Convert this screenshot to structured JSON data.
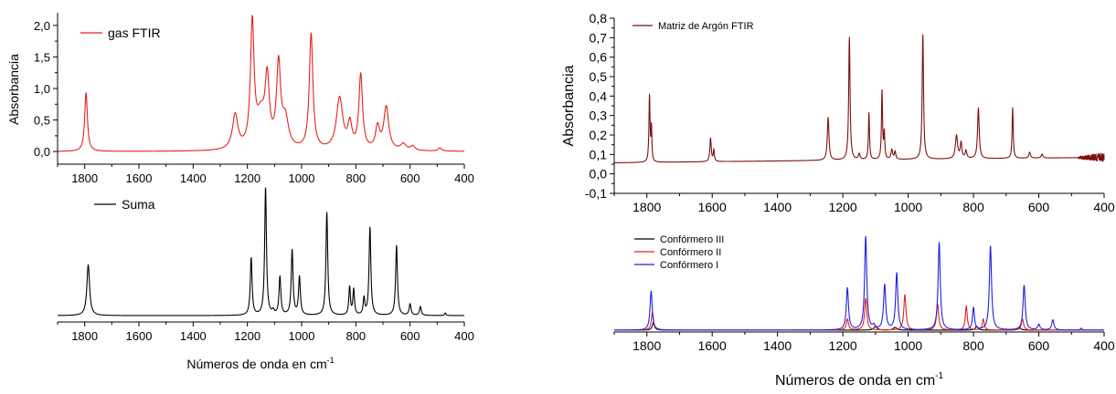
{
  "chart_data": [
    {
      "type": "line",
      "panel": "left-top",
      "ylabel": "Absorbancia",
      "xlim": [
        1900,
        400
      ],
      "ylim": [
        -0.2,
        2.2
      ],
      "x_ticks": [
        "1800",
        "1600",
        "1400",
        "1200",
        "1000",
        "800",
        "600",
        "400"
      ],
      "y_ticks": [
        "0,0",
        "0,5",
        "1,0",
        "1,5",
        "2,0"
      ],
      "y_tick_values": [
        0,
        0.5,
        1.0,
        1.5,
        2.0
      ],
      "legend_position": "top-left",
      "grid": false,
      "series": [
        {
          "name": "gas FTIR",
          "color": "#e8201c",
          "baseline": 0.0,
          "peaks": [
            [
              1795,
              0.93,
              6
            ],
            [
              1245,
              0.55,
              12
            ],
            [
              1182,
              1.95,
              8
            ],
            [
              1150,
              0.5,
              20
            ],
            [
              1127,
              1.0,
              9
            ],
            [
              1085,
              1.3,
              9
            ],
            [
              1060,
              0.45,
              14
            ],
            [
              965,
              1.83,
              8
            ],
            [
              860,
              0.82,
              14
            ],
            [
              822,
              0.38,
              9
            ],
            [
              782,
              1.18,
              8
            ],
            [
              720,
              0.35,
              9
            ],
            [
              688,
              0.68,
              11
            ],
            [
              625,
              0.1,
              12
            ],
            [
              590,
              0.07,
              10
            ],
            [
              490,
              0.05,
              8
            ]
          ]
        }
      ]
    },
    {
      "type": "line",
      "panel": "left-bottom",
      "xlabel": "Números de onda en cm",
      "xlabel_superscript": "-1",
      "xlim": [
        1900,
        400
      ],
      "ylim": [
        -0.05,
        1.05
      ],
      "x_ticks": [
        "1800",
        "1600",
        "1400",
        "1200",
        "1000",
        "800",
        "600",
        "400"
      ],
      "legend_position": "top-left",
      "grid": false,
      "series": [
        {
          "name": "Suma",
          "color": "#000000",
          "baseline": 0.0,
          "peaks": [
            [
              1787,
              0.4,
              6
            ],
            [
              1186,
              0.45,
              4
            ],
            [
              1133,
              1.0,
              4
            ],
            [
              1105,
              0.03,
              5
            ],
            [
              1080,
              0.3,
              4
            ],
            [
              1035,
              0.51,
              4
            ],
            [
              1008,
              0.3,
              4
            ],
            [
              907,
              0.81,
              4
            ],
            [
              823,
              0.22,
              3.5
            ],
            [
              808,
              0.2,
              3.5
            ],
            [
              770,
              0.13,
              3.5
            ],
            [
              748,
              0.69,
              4
            ],
            [
              650,
              0.55,
              4
            ],
            [
              600,
              0.09,
              4
            ],
            [
              562,
              0.07,
              4
            ],
            [
              470,
              0.02,
              3
            ]
          ]
        }
      ]
    },
    {
      "type": "line",
      "panel": "right-top",
      "ylabel": "Absorbancia",
      "xlim": [
        1900,
        400
      ],
      "ylim": [
        -0.1,
        0.8
      ],
      "x_ticks": [
        "1800",
        "1600",
        "1400",
        "1200",
        "1000",
        "800",
        "600",
        "400"
      ],
      "y_ticks": [
        "-0,1",
        "0,0",
        "0,1",
        "0,2",
        "0,3",
        "0,4",
        "0,5",
        "0,6",
        "0,7",
        "0,8"
      ],
      "y_tick_values": [
        -0.1,
        0.0,
        0.1,
        0.2,
        0.3,
        0.4,
        0.5,
        0.6,
        0.7,
        0.8
      ],
      "legend_position": "top-left",
      "grid": false,
      "series": [
        {
          "name": "Matriz de Argón FTIR",
          "color": "#7b1010",
          "baseline_from": 0.057,
          "baseline_to": 0.085,
          "noise_below_x": 480,
          "peaks": [
            [
              1792,
              0.34,
              2
            ],
            [
              1786,
              0.17,
              1.6
            ],
            [
              1605,
              0.12,
              2.5
            ],
            [
              1595,
              0.06,
              2
            ],
            [
              1245,
              0.22,
              3
            ],
            [
              1180,
              0.63,
              2.5
            ],
            [
              1150,
              0.03,
              3
            ],
            [
              1120,
              0.24,
              2
            ],
            [
              1080,
              0.35,
              2
            ],
            [
              1073,
              0.13,
              1.8
            ],
            [
              1050,
              0.05,
              3
            ],
            [
              1040,
              0.04,
              2.5
            ],
            [
              955,
              0.64,
              2.5
            ],
            [
              852,
              0.12,
              4
            ],
            [
              838,
              0.08,
              3
            ],
            [
              823,
              0.04,
              3
            ],
            [
              785,
              0.26,
              3
            ],
            [
              680,
              0.26,
              2
            ],
            [
              628,
              0.03,
              3
            ],
            [
              590,
              0.02,
              3
            ]
          ]
        }
      ]
    },
    {
      "type": "line",
      "panel": "right-bottom",
      "xlabel": "Números de onda en cm",
      "xlabel_superscript": "-1",
      "xlim": [
        1900,
        400
      ],
      "ylim": [
        -0.02,
        1.02
      ],
      "x_ticks": [
        "1800",
        "1600",
        "1400",
        "1200",
        "1000",
        "800",
        "600",
        "400"
      ],
      "legend_position": "top-left",
      "grid": false,
      "series": [
        {
          "name": "Confórmero III",
          "color": "#000000",
          "baseline": 0.0,
          "peaks": [
            [
              1780,
              0.08,
              4
            ],
            [
              1100,
              0.04,
              6
            ],
            [
              1040,
              0.03,
              6
            ],
            [
              790,
              0.04,
              5
            ],
            [
              660,
              0.03,
              5
            ]
          ]
        },
        {
          "name": "Confórmero II",
          "color": "#e8201c",
          "baseline": 0.0,
          "peaks": [
            [
              1783,
              0.19,
              4
            ],
            [
              1186,
              0.12,
              4
            ],
            [
              1130,
              0.34,
              4
            ],
            [
              1010,
              0.38,
              4
            ],
            [
              910,
              0.28,
              4
            ],
            [
              822,
              0.26,
              3.5
            ],
            [
              770,
              0.12,
              3.5
            ],
            [
              650,
              0.12,
              4
            ]
          ]
        },
        {
          "name": "Confórmero I",
          "color": "#1f1fe0",
          "baseline": 0.0,
          "peaks": [
            [
              1787,
              0.42,
              4
            ],
            [
              1186,
              0.45,
              4
            ],
            [
              1130,
              1.0,
              4
            ],
            [
              1105,
              0.04,
              4
            ],
            [
              1072,
              0.48,
              4
            ],
            [
              1035,
              0.61,
              4
            ],
            [
              905,
              0.94,
              4
            ],
            [
              800,
              0.24,
              3.5
            ],
            [
              748,
              0.9,
              4
            ],
            [
              645,
              0.48,
              4
            ],
            [
              600,
              0.06,
              4
            ],
            [
              557,
              0.11,
              4
            ],
            [
              470,
              0.02,
              3
            ]
          ]
        }
      ]
    }
  ]
}
